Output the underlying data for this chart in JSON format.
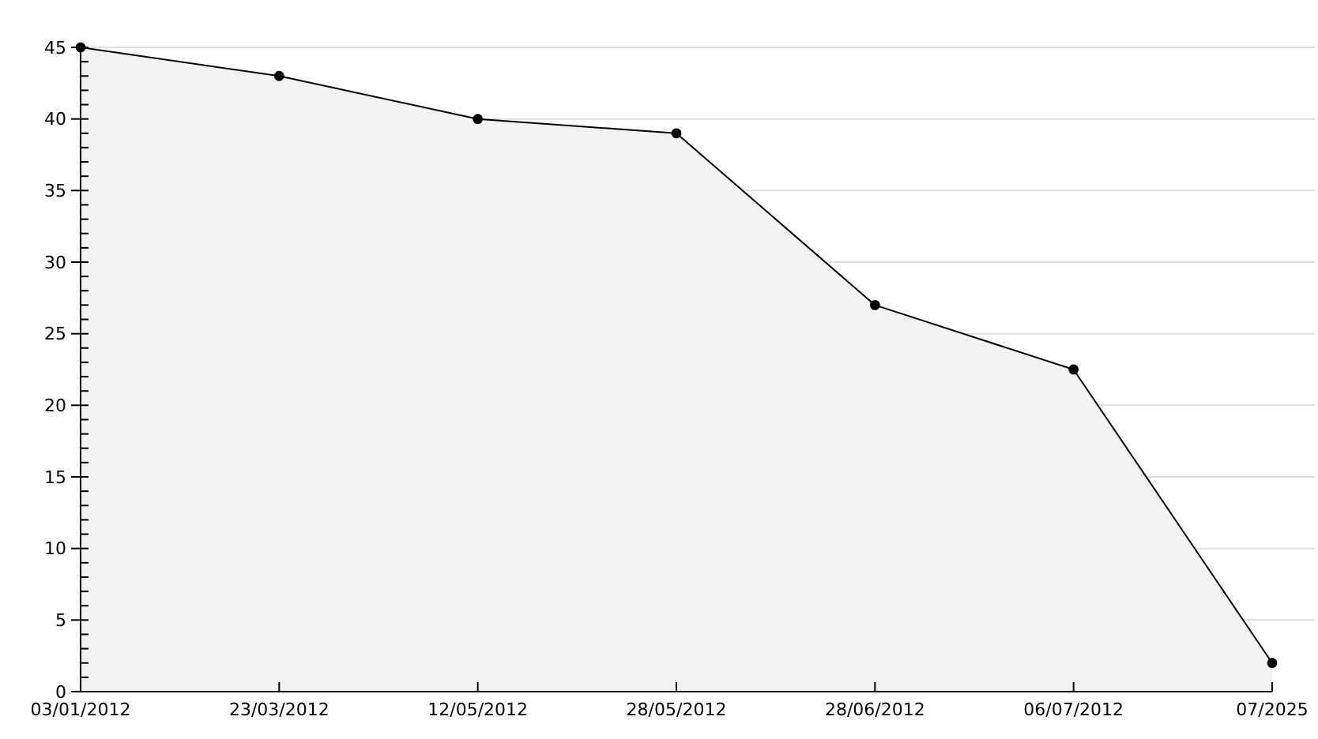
{
  "chart_data": {
    "type": "area",
    "categories": [
      "03/01/2012",
      "23/03/2012",
      "12/05/2012",
      "28/05/2012",
      "28/06/2012",
      "06/07/2012",
      "07/2025"
    ],
    "series": [
      {
        "color": "#000000",
        "values": [
          45,
          43,
          40,
          39,
          27,
          22.5,
          2
        ]
      }
    ],
    "ylim": [
      0,
      45
    ],
    "yticks": [
      0,
      {
        "value": 1,
        "label": null
      },
      {
        "value": 2,
        "label": null
      },
      {
        "value": 3,
        "label": null
      },
      {
        "value": 4,
        "label": null
      },
      5,
      {
        "value": 6,
        "label": null
      },
      {
        "value": 7,
        "label": null
      },
      {
        "value": 8,
        "label": null
      },
      {
        "value": 9,
        "label": null
      },
      10,
      {
        "value": 11,
        "label": null
      },
      {
        "value": 12,
        "label": null
      },
      {
        "value": 13,
        "label": null
      },
      {
        "value": 14,
        "label": null
      },
      15,
      {
        "value": 16,
        "label": null
      },
      {
        "value": 17,
        "label": null
      },
      {
        "value": 18,
        "label": null
      },
      {
        "value": 19,
        "label": null
      },
      20,
      {
        "value": 21,
        "label": null
      },
      {
        "value": 22,
        "label": null
      },
      {
        "value": 23,
        "label": null
      },
      {
        "value": 24,
        "label": null
      },
      25,
      {
        "value": 26,
        "label": null
      },
      {
        "value": 27,
        "label": null
      },
      {
        "value": 28,
        "label": null
      },
      {
        "value": 29,
        "label": null
      },
      30,
      {
        "value": 31,
        "label": null
      },
      {
        "value": 32,
        "label": null
      },
      {
        "value": 33,
        "label": null
      },
      {
        "value": 34,
        "label": null
      },
      35,
      {
        "value": 36,
        "label": null
      },
      {
        "value": 37,
        "label": null
      },
      {
        "value": 38,
        "label": null
      },
      {
        "value": 39,
        "label": null
      },
      40,
      {
        "value": 41,
        "label": null
      },
      {
        "value": 42,
        "label": null
      },
      {
        "value": 43,
        "label": null
      },
      {
        "value": 44,
        "label": null
      },
      45
    ],
    "grid": "y",
    "marker": "circle",
    "line_style": "solid"
  }
}
